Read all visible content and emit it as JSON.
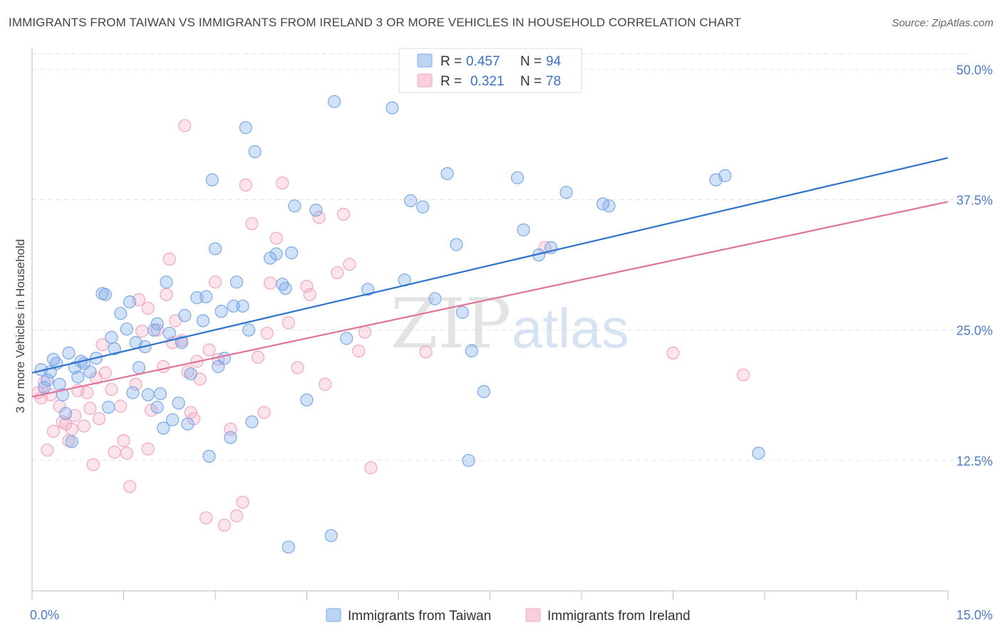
{
  "title": "IMMIGRANTS FROM TAIWAN VS IMMIGRANTS FROM IRELAND 3 OR MORE VEHICLES IN HOUSEHOLD CORRELATION CHART",
  "source": "Source: ZipAtlas.com",
  "colors": {
    "taiwan": "#7aaae8",
    "ireland": "#f4a6c0",
    "taiwan_line": "#2f72cc",
    "ireland_line": "#e0739a"
  },
  "legend_top": {
    "r_label": "R =",
    "n_label": "N =",
    "rows": [
      {
        "r": "0.457",
        "n": "94"
      },
      {
        "r": "0.321",
        "n": "78"
      }
    ]
  },
  "legend_bottom": [
    "Immigrants from Taiwan",
    "Immigrants from Ireland"
  ],
  "watermark": {
    "zip": "ZIP",
    "atlas": "atlas"
  },
  "chart_data": {
    "type": "scatter",
    "title": "IMMIGRANTS FROM TAIWAN VS IMMIGRANTS FROM IRELAND 3 OR MORE VEHICLES IN HOUSEHOLD CORRELATION CHART",
    "xlabel": "",
    "ylabel": "3 or more Vehicles in Household",
    "xlim": [
      0,
      15
    ],
    "ylim": [
      0,
      52
    ],
    "x_tick_labels": [
      "0.0%",
      "15.0%"
    ],
    "y_ticks": [
      12.5,
      25.0,
      37.5,
      50.0
    ],
    "y_tick_labels": [
      "12.5%",
      "25.0%",
      "37.5%",
      "50.0%"
    ],
    "grid": true,
    "legend_position": "top-center",
    "series": [
      {
        "name": "Immigrants from Taiwan",
        "r": 0.457,
        "n": 94,
        "trend": [
          [
            0,
            20.9
          ],
          [
            15,
            41.5
          ]
        ],
        "points": [
          [
            0.15,
            21.2
          ],
          [
            0.2,
            19.5
          ],
          [
            0.3,
            21.0
          ],
          [
            0.35,
            22.2
          ],
          [
            0.4,
            21.8
          ],
          [
            0.45,
            19.8
          ],
          [
            0.5,
            18.8
          ],
          [
            0.55,
            17.0
          ],
          [
            0.6,
            22.8
          ],
          [
            0.7,
            21.4
          ],
          [
            0.75,
            20.5
          ],
          [
            0.8,
            22.0
          ],
          [
            0.85,
            21.8
          ],
          [
            0.95,
            21.0
          ],
          [
            1.05,
            22.3
          ],
          [
            1.15,
            28.5
          ],
          [
            1.2,
            28.4
          ],
          [
            1.3,
            24.3
          ],
          [
            1.35,
            23.2
          ],
          [
            1.45,
            26.6
          ],
          [
            1.55,
            25.1
          ],
          [
            1.6,
            27.7
          ],
          [
            1.65,
            19.0
          ],
          [
            1.7,
            23.8
          ],
          [
            1.75,
            21.4
          ],
          [
            1.85,
            23.4
          ],
          [
            1.9,
            18.8
          ],
          [
            2.0,
            25.0
          ],
          [
            2.05,
            25.6
          ],
          [
            2.1,
            18.9
          ],
          [
            2.15,
            15.6
          ],
          [
            2.2,
            29.6
          ],
          [
            2.25,
            24.7
          ],
          [
            2.3,
            16.4
          ],
          [
            2.4,
            18.0
          ],
          [
            2.45,
            23.8
          ],
          [
            2.5,
            26.4
          ],
          [
            2.55,
            16.0
          ],
          [
            2.6,
            20.8
          ],
          [
            2.7,
            28.1
          ],
          [
            2.8,
            25.9
          ],
          [
            2.85,
            28.2
          ],
          [
            2.9,
            12.9
          ],
          [
            2.95,
            39.4
          ],
          [
            3.0,
            32.8
          ],
          [
            3.05,
            21.5
          ],
          [
            3.1,
            26.8
          ],
          [
            3.15,
            22.3
          ],
          [
            3.25,
            14.7
          ],
          [
            3.3,
            27.3
          ],
          [
            3.35,
            29.6
          ],
          [
            3.45,
            27.3
          ],
          [
            3.5,
            44.4
          ],
          [
            3.55,
            25.0
          ],
          [
            3.6,
            16.2
          ],
          [
            3.65,
            42.1
          ],
          [
            3.9,
            31.9
          ],
          [
            4.0,
            32.3
          ],
          [
            4.1,
            29.4
          ],
          [
            4.15,
            29.0
          ],
          [
            4.25,
            32.4
          ],
          [
            4.3,
            36.9
          ],
          [
            4.5,
            18.3
          ],
          [
            4.65,
            36.5
          ],
          [
            4.95,
            46.9
          ],
          [
            5.15,
            24.2
          ],
          [
            5.5,
            28.9
          ],
          [
            5.9,
            46.3
          ],
          [
            6.1,
            29.8
          ],
          [
            6.2,
            37.4
          ],
          [
            6.4,
            36.8
          ],
          [
            6.6,
            28.0
          ],
          [
            6.8,
            40.0
          ],
          [
            6.95,
            33.2
          ],
          [
            7.05,
            26.7
          ],
          [
            7.15,
            12.5
          ],
          [
            7.2,
            23.0
          ],
          [
            7.4,
            19.1
          ],
          [
            7.95,
            39.6
          ],
          [
            8.05,
            34.6
          ],
          [
            8.3,
            32.2
          ],
          [
            8.5,
            32.9
          ],
          [
            8.75,
            38.2
          ],
          [
            9.35,
            37.1
          ],
          [
            9.45,
            36.9
          ],
          [
            11.2,
            39.4
          ],
          [
            11.35,
            39.8
          ],
          [
            11.9,
            13.2
          ],
          [
            0.65,
            14.3
          ],
          [
            4.2,
            4.2
          ],
          [
            4.9,
            5.3
          ],
          [
            1.25,
            17.6
          ],
          [
            2.05,
            17.6
          ],
          [
            0.25,
            20.2
          ]
        ]
      },
      {
        "name": "Immigrants from Ireland",
        "r": 0.321,
        "n": 78,
        "trend": [
          [
            0,
            18.6
          ],
          [
            15,
            37.3
          ]
        ],
        "points": [
          [
            0.1,
            19.0
          ],
          [
            0.15,
            18.5
          ],
          [
            0.2,
            20.0
          ],
          [
            0.25,
            13.5
          ],
          [
            0.3,
            18.8
          ],
          [
            0.35,
            15.3
          ],
          [
            0.45,
            17.7
          ],
          [
            0.5,
            16.2
          ],
          [
            0.55,
            16.0
          ],
          [
            0.6,
            14.4
          ],
          [
            0.65,
            15.5
          ],
          [
            0.7,
            16.8
          ],
          [
            0.75,
            19.2
          ],
          [
            0.85,
            15.8
          ],
          [
            0.9,
            19.0
          ],
          [
            0.95,
            17.5
          ],
          [
            1.0,
            12.1
          ],
          [
            1.05,
            20.4
          ],
          [
            1.15,
            23.6
          ],
          [
            1.2,
            20.9
          ],
          [
            1.3,
            19.3
          ],
          [
            1.35,
            13.3
          ],
          [
            1.45,
            17.7
          ],
          [
            1.5,
            14.4
          ],
          [
            1.55,
            13.2
          ],
          [
            1.6,
            10.0
          ],
          [
            1.7,
            19.8
          ],
          [
            1.75,
            27.9
          ],
          [
            1.8,
            24.9
          ],
          [
            1.9,
            13.6
          ],
          [
            1.95,
            17.3
          ],
          [
            2.05,
            25.0
          ],
          [
            2.15,
            21.5
          ],
          [
            2.2,
            28.4
          ],
          [
            2.25,
            31.8
          ],
          [
            2.35,
            25.9
          ],
          [
            2.45,
            24.0
          ],
          [
            2.55,
            21.0
          ],
          [
            2.6,
            17.1
          ],
          [
            2.65,
            16.5
          ],
          [
            2.75,
            20.3
          ],
          [
            2.85,
            7.0
          ],
          [
            2.9,
            23.1
          ],
          [
            3.0,
            29.6
          ],
          [
            3.05,
            22.2
          ],
          [
            3.15,
            6.3
          ],
          [
            3.25,
            15.5
          ],
          [
            3.35,
            7.2
          ],
          [
            3.45,
            8.5
          ],
          [
            3.5,
            38.9
          ],
          [
            3.6,
            35.2
          ],
          [
            3.7,
            22.4
          ],
          [
            3.8,
            17.1
          ],
          [
            3.9,
            29.5
          ],
          [
            4.0,
            33.8
          ],
          [
            4.1,
            39.1
          ],
          [
            4.2,
            25.7
          ],
          [
            4.35,
            21.4
          ],
          [
            4.55,
            28.4
          ],
          [
            4.7,
            35.8
          ],
          [
            4.8,
            19.8
          ],
          [
            5.0,
            30.5
          ],
          [
            5.1,
            36.1
          ],
          [
            5.2,
            31.3
          ],
          [
            5.35,
            23.0
          ],
          [
            5.45,
            24.8
          ],
          [
            5.55,
            11.8
          ],
          [
            6.45,
            22.9
          ],
          [
            8.4,
            32.9
          ],
          [
            10.5,
            22.8
          ],
          [
            11.65,
            20.7
          ],
          [
            2.5,
            44.6
          ],
          [
            1.9,
            27.1
          ],
          [
            3.85,
            24.7
          ],
          [
            4.5,
            29.2
          ],
          [
            2.7,
            22.0
          ],
          [
            2.3,
            23.8
          ],
          [
            1.1,
            16.5
          ]
        ]
      }
    ]
  }
}
